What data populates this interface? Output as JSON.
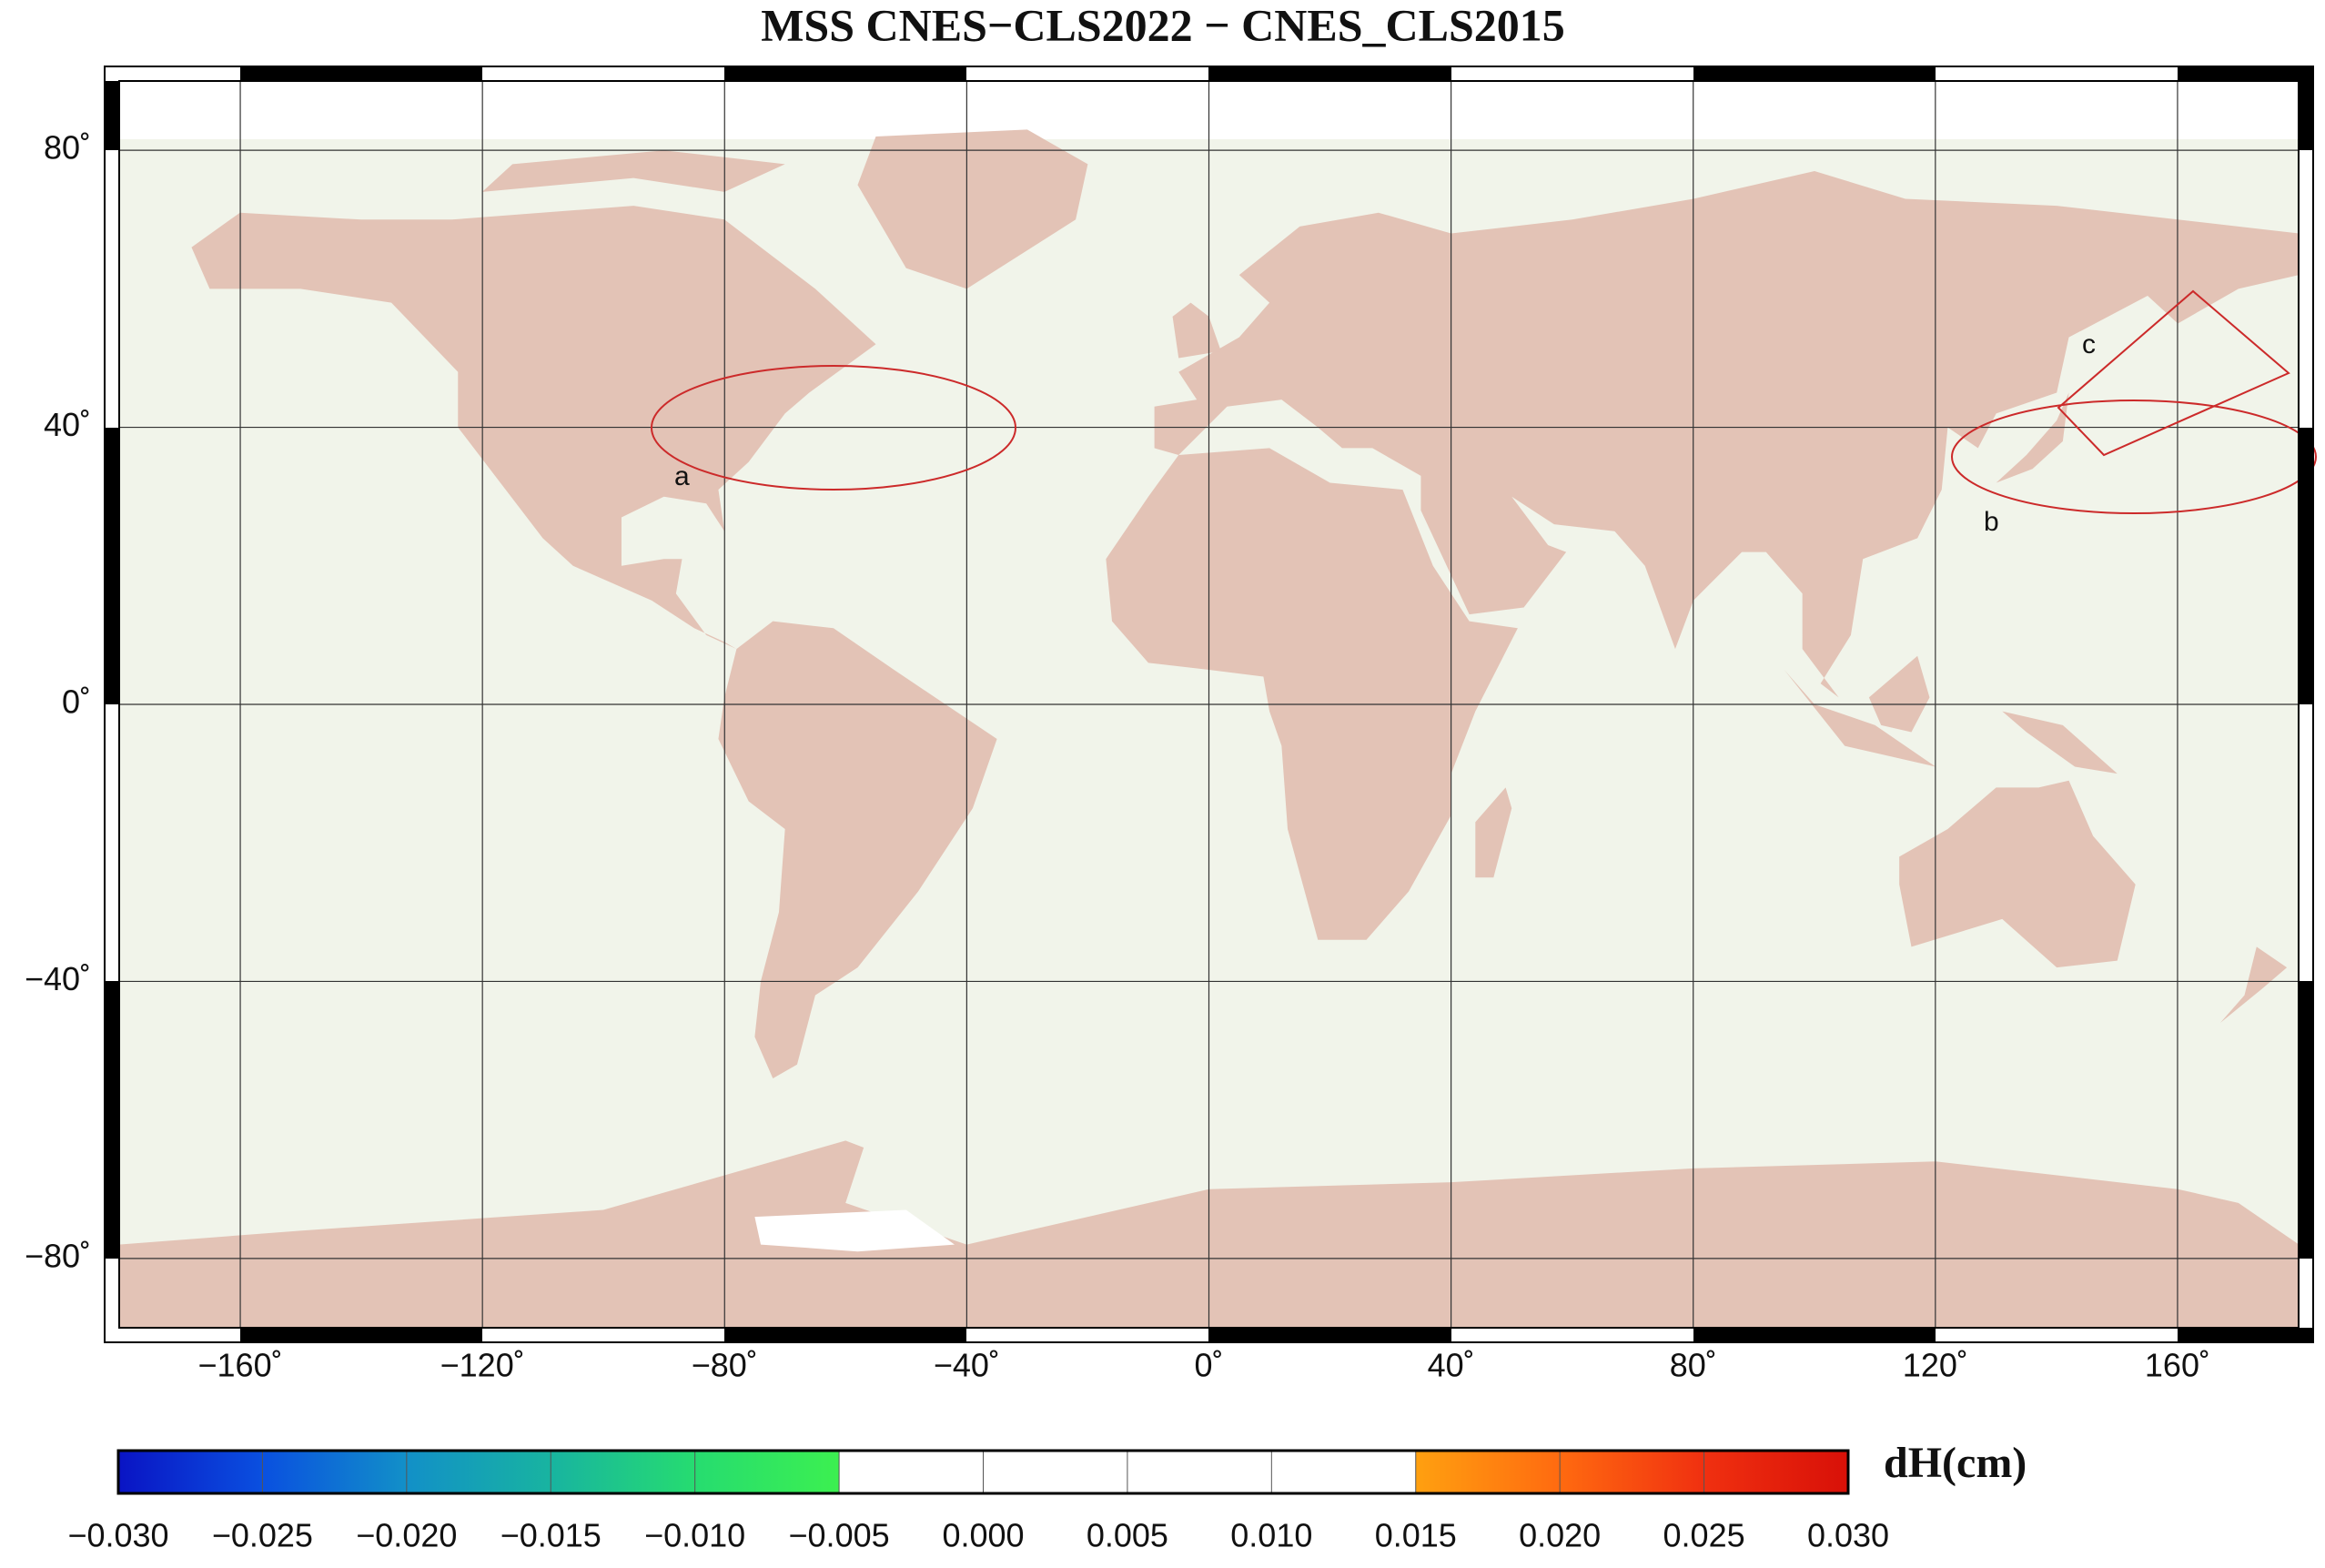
{
  "chart_data": {
    "type": "map",
    "title": "MSS CNES−CLS2022 − CNES_CLS2015",
    "xlim": [
      -180,
      180
    ],
    "ylim": [
      -90,
      90
    ],
    "xticks": [
      {
        "value": -160,
        "label": "−160˚"
      },
      {
        "value": -120,
        "label": "−120˚"
      },
      {
        "value": -80,
        "label": "−80˚"
      },
      {
        "value": -40,
        "label": "−40˚"
      },
      {
        "value": 0,
        "label": "0˚"
      },
      {
        "value": 40,
        "label": "40˚"
      },
      {
        "value": 80,
        "label": "80˚"
      },
      {
        "value": 120,
        "label": "120˚"
      },
      {
        "value": 160,
        "label": "160˚"
      }
    ],
    "yticks": [
      {
        "value": -80,
        "label": "−80˚"
      },
      {
        "value": -40,
        "label": "−40˚"
      },
      {
        "value": 0,
        "label": "0˚"
      },
      {
        "value": 40,
        "label": "40˚"
      },
      {
        "value": 80,
        "label": "80˚"
      }
    ],
    "grid": true,
    "annotations": [
      "a",
      "b",
      "c"
    ],
    "colorbar": {
      "label": "dH(cm)",
      "ticks": [
        {
          "value": -0.03,
          "label": "−0.030"
        },
        {
          "value": -0.025,
          "label": "−0.025"
        },
        {
          "value": -0.02,
          "label": "−0.020"
        },
        {
          "value": -0.015,
          "label": "−0.015"
        },
        {
          "value": -0.01,
          "label": "−0.010"
        },
        {
          "value": -0.005,
          "label": "−0.005"
        },
        {
          "value": 0,
          "label": "0.000"
        },
        {
          "value": 0.005,
          "label": "0.005"
        },
        {
          "value": 0.01,
          "label": "0.010"
        },
        {
          "value": 0.015,
          "label": "0.015"
        },
        {
          "value": 0.02,
          "label": "0.020"
        },
        {
          "value": 0.025,
          "label": "0.025"
        },
        {
          "value": 0.03,
          "label": "0.030"
        }
      ],
      "colors": [
        [
          "#0a14c4",
          "#0a50e0"
        ],
        [
          "#0a50e0",
          "#1290c8"
        ],
        [
          "#1290c8",
          "#18b4a0"
        ],
        [
          "#18b4a0",
          "#26dc70"
        ],
        [
          "#26dc70",
          "#3cf050"
        ],
        [
          "#ffffff",
          "#ffffff"
        ],
        [
          "#ffffff",
          "#ffffff"
        ],
        [
          "#ffffff",
          "#ffffff"
        ],
        [
          "#ffffff",
          "#ffffff"
        ],
        [
          "#ffa010",
          "#ff6a10"
        ],
        [
          "#ff6a10",
          "#f03010"
        ],
        [
          "#f03010",
          "#d81008"
        ],
        [
          "#d81008",
          "#a00000"
        ]
      ]
    }
  }
}
